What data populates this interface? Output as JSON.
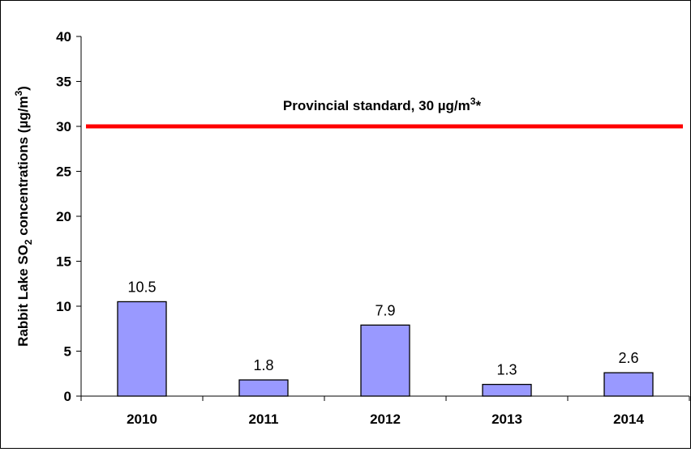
{
  "chart_data": {
    "type": "bar",
    "categories": [
      "2010",
      "2011",
      "2012",
      "2013",
      "2014"
    ],
    "values": [
      10.5,
      1.8,
      7.9,
      1.3,
      2.6
    ],
    "data_labels": [
      "10.5",
      "1.8",
      "7.9",
      "1.3",
      "2.6"
    ],
    "ylim": [
      0,
      40
    ],
    "yticks": [
      0,
      5,
      10,
      15,
      20,
      25,
      30,
      35,
      40
    ],
    "ylabel": {
      "prefix": "Rabbit Lake SO",
      "sub": "2",
      "middle": " concentrations (µg/m",
      "sup": "3",
      "suffix": ")"
    },
    "reference_line": {
      "value": 30,
      "label": {
        "prefix": "Provincial standard, 30 µg/m",
        "sup": "3",
        "suffix": "*"
      },
      "color": "#ff0000"
    },
    "bar_color": "#9999ff",
    "bar_edge_color": "#000000",
    "grid": false,
    "legend": "none"
  }
}
